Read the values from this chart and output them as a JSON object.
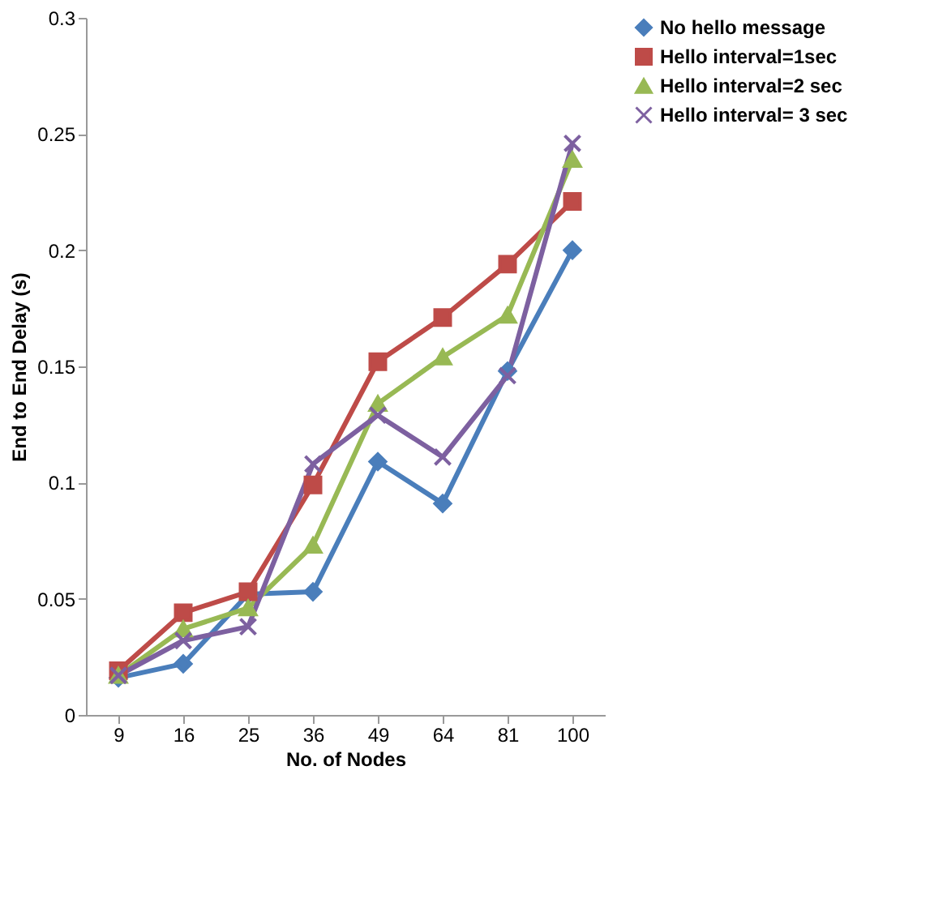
{
  "chart_data": {
    "type": "line",
    "xlabel": "No. of Nodes",
    "ylabel": "End to End Delay (s)",
    "categories": [
      "9",
      "16",
      "25",
      "36",
      "49",
      "64",
      "81",
      "100"
    ],
    "ylim": [
      0,
      0.3
    ],
    "yticks": [
      0,
      0.05,
      0.1,
      0.15,
      0.2,
      0.25,
      0.3
    ],
    "grid": false,
    "legend": "right",
    "line_style": "solid",
    "series": [
      {
        "name": "No hello message",
        "color": "#4a7ebb",
        "marker": "diamond",
        "values": [
          0.016,
          0.022,
          0.052,
          0.053,
          0.109,
          0.091,
          0.148,
          0.2
        ]
      },
      {
        "name": "Hello interval=1sec",
        "color": "#be4b48",
        "marker": "square",
        "values": [
          0.019,
          0.044,
          0.053,
          0.099,
          0.152,
          0.171,
          0.194,
          0.221
        ]
      },
      {
        "name": "Hello interval=2 sec",
        "color": "#98b954",
        "marker": "triangle",
        "values": [
          0.017,
          0.037,
          0.046,
          0.073,
          0.134,
          0.154,
          0.172,
          0.239
        ]
      },
      {
        "name": "Hello interval= 3 sec",
        "color": "#7d60a0",
        "marker": "cross",
        "values": [
          0.017,
          0.032,
          0.038,
          0.108,
          0.129,
          0.111,
          0.146,
          0.246
        ]
      }
    ]
  }
}
